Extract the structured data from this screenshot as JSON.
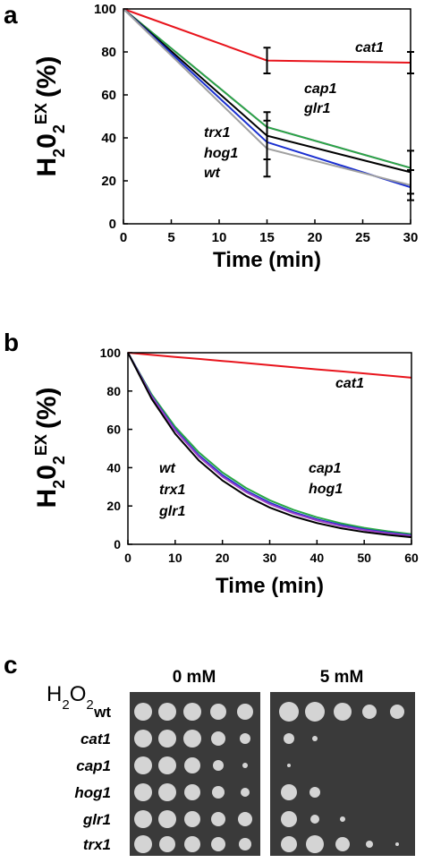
{
  "chart_data": [
    {
      "type": "line",
      "panel_label": "a",
      "x_label": "Time (min)",
      "y_label": [
        "H",
        "2",
        "0",
        "2",
        "EX",
        "(%)"
      ],
      "x": [
        0,
        15,
        30
      ],
      "xlim": [
        0,
        30
      ],
      "xticks": [
        0,
        5,
        10,
        15,
        20,
        25,
        30
      ],
      "ylim": [
        0,
        100
      ],
      "yticks": [
        0,
        20,
        40,
        60,
        80,
        100
      ],
      "series": [
        {
          "color": "#e8141c",
          "values": [
            100,
            76,
            75
          ],
          "errors": [
            null,
            6,
            5
          ]
        },
        {
          "color": "#e030e0",
          "values": [
            100,
            45,
            26
          ]
        },
        {
          "color": "#28a745",
          "values": [
            100,
            45,
            26
          ]
        },
        {
          "color": "#000000",
          "values": [
            100,
            41,
            24
          ],
          "errors": [
            null,
            11,
            10
          ]
        },
        {
          "color": "#1a2fd0",
          "values": [
            100,
            38,
            17
          ]
        },
        {
          "color": "#a0a0a0",
          "values": [
            100,
            35,
            18
          ],
          "errors": [
            null,
            13,
            7
          ]
        }
      ],
      "annotations": [
        "cat1",
        "cap1",
        "glr1",
        "trx1",
        "hog1",
        "wt"
      ]
    },
    {
      "type": "line",
      "panel_label": "b",
      "x_label": "Time (min)",
      "y_label": [
        "H",
        "2",
        "0",
        "2",
        "EX",
        "(%)"
      ],
      "x": [
        0,
        5,
        10,
        15,
        20,
        25,
        30,
        35,
        40,
        45,
        50,
        55,
        60
      ],
      "xlim": [
        0,
        60
      ],
      "xticks": [
        0,
        10,
        20,
        30,
        40,
        50,
        60
      ],
      "ylim": [
        0,
        100
      ],
      "yticks": [
        0,
        20,
        40,
        60,
        80,
        100
      ],
      "series": [
        {
          "color": "#e8141c",
          "values": [
            100,
            98.9,
            97.8,
            96.8,
            95.7,
            94.6,
            93.5,
            92.4,
            91.3,
            90.3,
            89.2,
            88.1,
            87
          ]
        },
        {
          "color": "#28a745",
          "values": [
            100,
            78.3,
            61.3,
            48,
            37.5,
            29.4,
            23,
            18,
            14.1,
            11,
            8.6,
            6.8,
            5.3
          ]
        },
        {
          "color": "#1a2fd0",
          "values": [
            100,
            77.5,
            60,
            46.5,
            36.1,
            28,
            21.7,
            16.8,
            13,
            10.1,
            7.8,
            6.1,
            4.7
          ]
        },
        {
          "color": "#9b40c8",
          "values": [
            100,
            77.1,
            59.5,
            45.8,
            35.3,
            27.3,
            21,
            16.2,
            12.5,
            9.6,
            7.4,
            5.7,
            4.4
          ]
        },
        {
          "color": "#000000",
          "values": [
            100,
            76,
            57.7,
            43.8,
            33.3,
            25.3,
            19.2,
            14.6,
            11.1,
            8.4,
            6.4,
            4.9,
            3.7
          ]
        }
      ],
      "annotations": [
        "cat1",
        "wt",
        "trx1",
        "glr1",
        "cap1",
        "hog1"
      ]
    }
  ],
  "panel_c": {
    "panel_label": "c",
    "treatment": [
      "H",
      "2",
      "O",
      "2"
    ],
    "conditions": [
      "0 mM",
      "5 mM"
    ],
    "strains": [
      "wt",
      "cat1",
      "cap1",
      "hog1",
      "glr1",
      "trx1"
    ]
  }
}
